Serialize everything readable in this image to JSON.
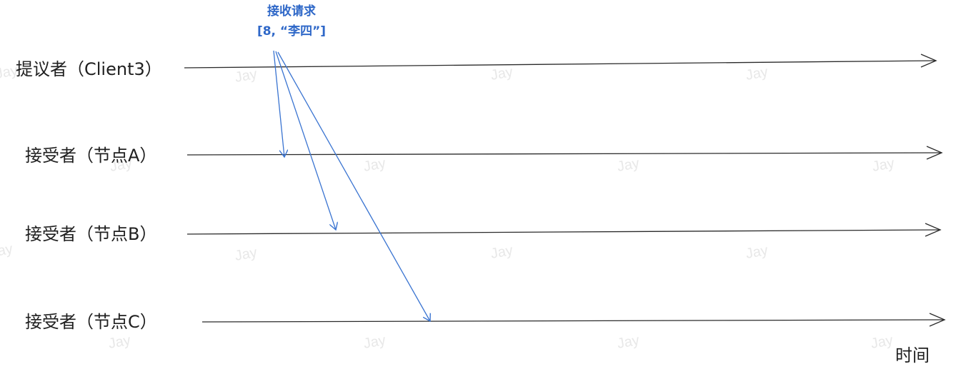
{
  "participants": {
    "proposer": "提议者（Client3）",
    "acceptor_a": "接受者（节点A）",
    "acceptor_b": "接受者（节点B）",
    "acceptor_c": "接受者（节点C）"
  },
  "request_note": {
    "line1": "接收请求",
    "line2": "[8, “李四”]"
  },
  "time_axis_label": "时间",
  "watermark": "Jay",
  "colors": {
    "timeline": "#2b2b2b",
    "message": "#3a74d1",
    "note": "#2f68c8",
    "watermark": "#e8e8e8"
  }
}
